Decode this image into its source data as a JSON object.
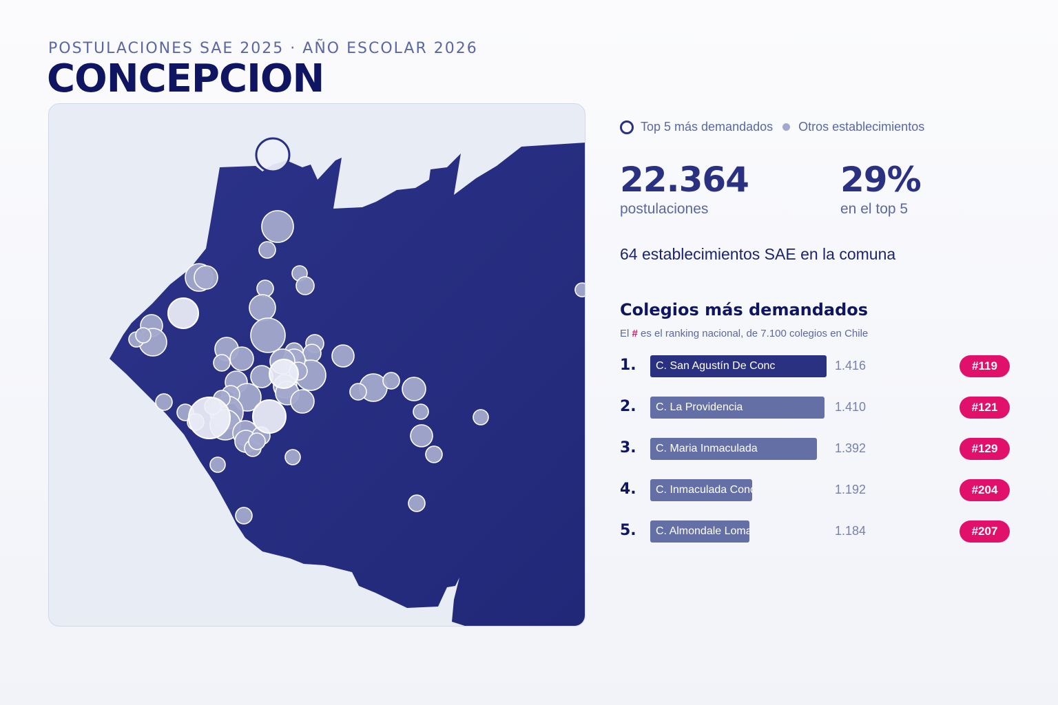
{
  "header": {
    "subtitle": "POSTULACIONES SAE 2025 · AÑO ESCOLAR 2026",
    "title": "CONCEPCION"
  },
  "colors": {
    "land": "#282f84",
    "water": "#e8ecf5",
    "other_school": "#a3a9cc",
    "top5_school": "#eef0f8",
    "accent": "#e0106b"
  },
  "legend": {
    "top5": "Top 5 más demandados",
    "others": "Otros establecimientos"
  },
  "stats": {
    "applications_value": "22.364",
    "applications_label": "postulaciones",
    "top5_share_value": "29%",
    "top5_share_label": "en el top 5"
  },
  "schools_count_text": "64 establecimientos SAE en la comuna",
  "top_schools": {
    "title": "Colegios más demandados",
    "note_prefix": "El",
    "note_hash": "#",
    "note_suffix": "es el ranking nacional, de 7.100 colegios en Chile",
    "max_applications": 1416,
    "rows": [
      {
        "rank": "1.",
        "name": "C. San Agustín De Conc",
        "applications": "1.416",
        "value": 1416,
        "badge": "#119"
      },
      {
        "rank": "2.",
        "name": "C. La Providencia",
        "applications": "1.410",
        "value": 1410,
        "badge": "#121"
      },
      {
        "rank": "3.",
        "name": "C. Maria Inmaculada",
        "applications": "1.392",
        "value": 1392,
        "badge": "#129"
      },
      {
        "rank": "4.",
        "name": "C. Inmaculada Concepci",
        "applications": "1.192",
        "value": 1192,
        "badge": "#204"
      },
      {
        "rank": "5.",
        "name": "C. Almondale Lomas",
        "applications": "1.184",
        "value": 1184,
        "badge": "#207"
      }
    ]
  }
}
